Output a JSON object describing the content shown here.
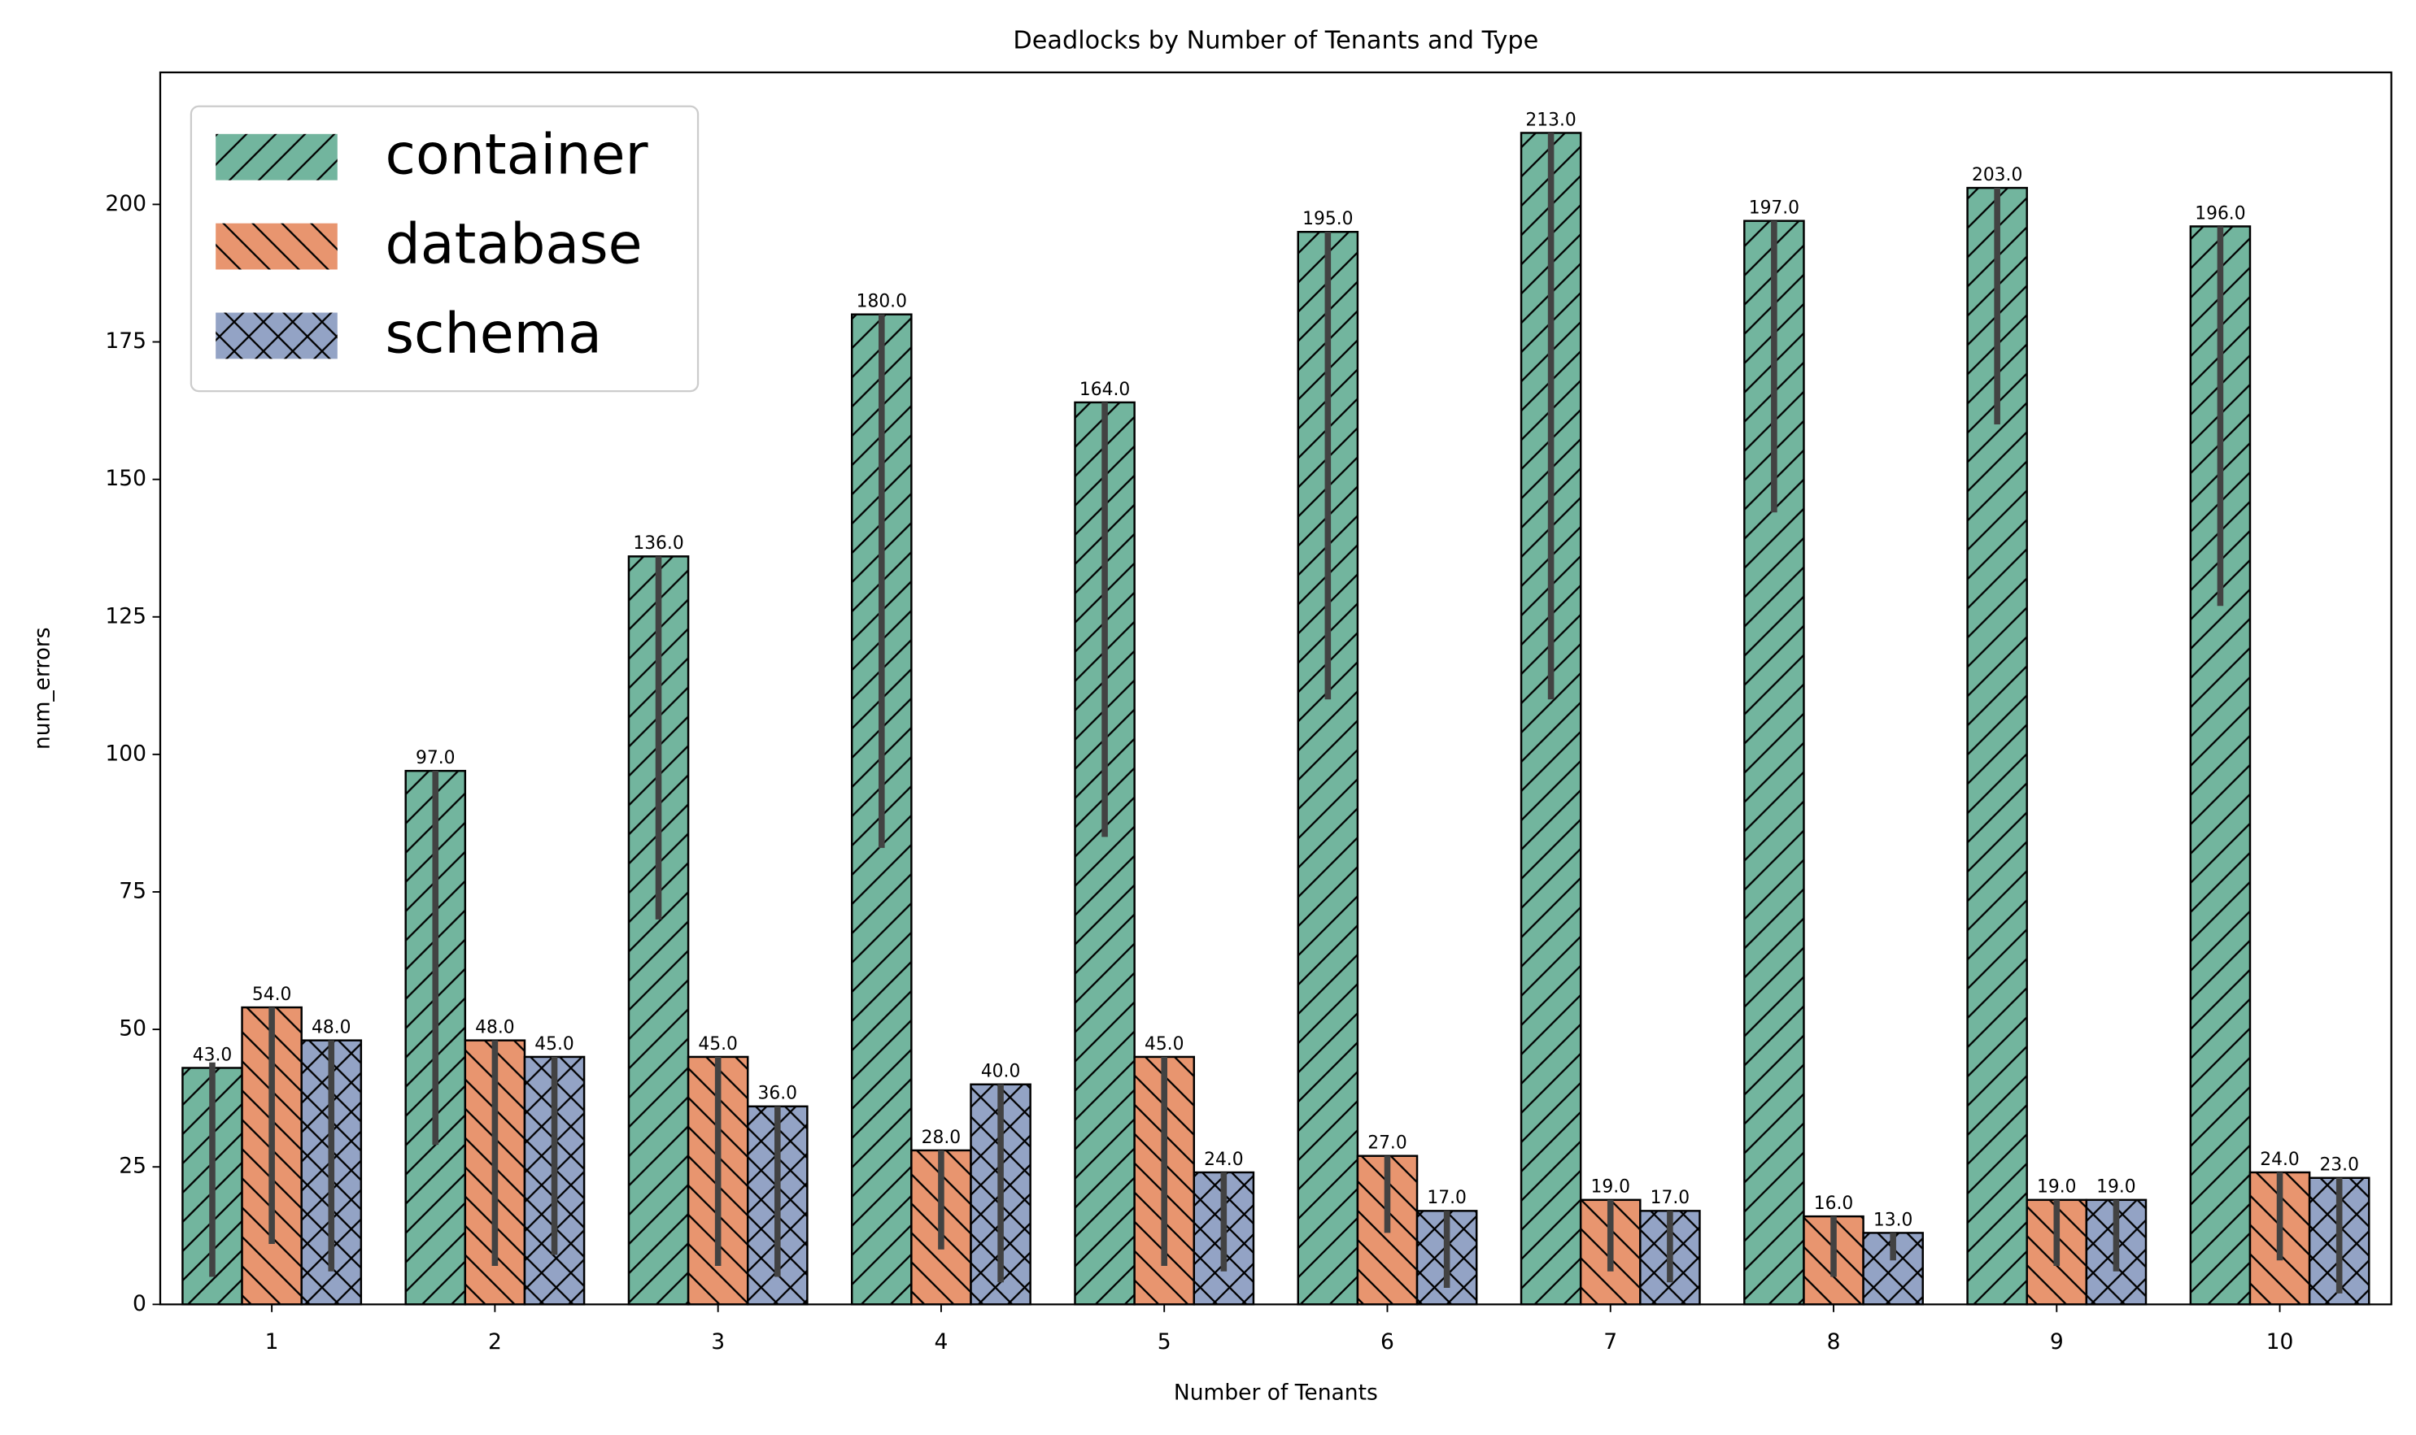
{
  "chart_data": {
    "type": "bar",
    "title": "Deadlocks by Number of Tenants and Type",
    "x_label": "Number of Tenants",
    "y_label": "num_errors",
    "categories": [
      "1",
      "2",
      "3",
      "4",
      "5",
      "6",
      "7",
      "8",
      "9",
      "10"
    ],
    "series": [
      {
        "name": "container",
        "color": "#72b59e",
        "hatch": "/",
        "values": [
          43,
          97,
          136,
          180,
          164,
          195,
          213,
          197,
          203,
          196
        ],
        "value_labels": [
          "43.0",
          "97.0",
          "136.0",
          "180.0",
          "164.0",
          "195.0",
          "213.0",
          "197.0",
          "203.0",
          "196.0"
        ],
        "errors": [
          [
            5,
            44
          ],
          [
            29,
            97
          ],
          [
            70,
            136
          ],
          [
            83,
            180
          ],
          [
            85,
            164
          ],
          [
            110,
            195
          ],
          [
            110,
            213
          ],
          [
            144,
            197
          ],
          [
            160,
            203
          ],
          [
            127,
            196
          ]
        ]
      },
      {
        "name": "database",
        "color": "#e8956f",
        "hatch": "\\",
        "values": [
          54,
          48,
          45,
          28,
          45,
          27,
          19,
          16,
          19,
          24
        ],
        "value_labels": [
          "54.0",
          "48.0",
          "45.0",
          "28.0",
          "45.0",
          "27.0",
          "19.0",
          "16.0",
          "19.0",
          "24.0"
        ],
        "errors": [
          [
            11,
            54
          ],
          [
            7,
            48
          ],
          [
            7,
            45
          ],
          [
            10,
            28
          ],
          [
            7,
            45
          ],
          [
            13,
            27
          ],
          [
            6,
            19
          ],
          [
            5,
            16
          ],
          [
            7,
            19
          ],
          [
            8,
            24
          ]
        ]
      },
      {
        "name": "schema",
        "color": "#93a3c5",
        "hatch": "x",
        "values": [
          48,
          45,
          36,
          40,
          24,
          17,
          17,
          13,
          19,
          23
        ],
        "value_labels": [
          "48.0",
          "45.0",
          "36.0",
          "40.0",
          "24.0",
          "17.0",
          "17.0",
          "13.0",
          "19.0",
          "23.0"
        ],
        "errors": [
          [
            6,
            48
          ],
          [
            9,
            45
          ],
          [
            5,
            36
          ],
          [
            4,
            40
          ],
          [
            6,
            24
          ],
          [
            3,
            17
          ],
          [
            4,
            17
          ],
          [
            8,
            13
          ],
          [
            6,
            19
          ],
          [
            2,
            23
          ]
        ]
      }
    ],
    "ylim": [
      0,
      224
    ],
    "yticks": [
      0,
      25,
      50,
      75,
      100,
      125,
      150,
      175,
      200
    ],
    "grid": false,
    "legend": "upper left"
  }
}
